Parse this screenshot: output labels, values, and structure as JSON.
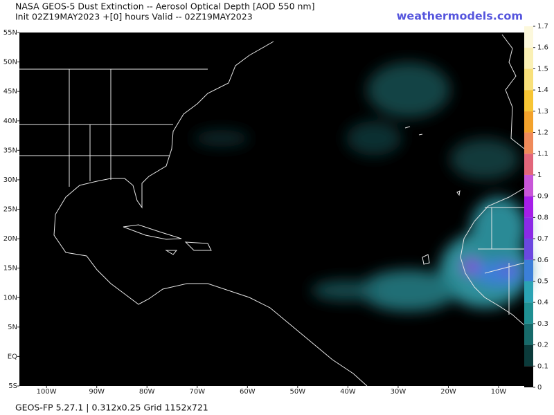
{
  "header": {
    "title": "NASA GEOS-5 Dust Extinction -- Aerosol Optical Depth [AOD 550 nm]",
    "subtitle": "Init 02Z19MAY2023 +[0] hours Valid -- 02Z19MAY2023",
    "site": "weathermodels.com"
  },
  "map": {
    "latitude_labels": [
      {
        "value": 55,
        "label": "55N"
      },
      {
        "value": 50,
        "label": "50N"
      },
      {
        "value": 45,
        "label": "45N"
      },
      {
        "value": 40,
        "label": "40N"
      },
      {
        "value": 35,
        "label": "35N"
      },
      {
        "value": 30,
        "label": "30N"
      },
      {
        "value": 25,
        "label": "25N"
      },
      {
        "value": 20,
        "label": "20N"
      },
      {
        "value": 15,
        "label": "15N"
      },
      {
        "value": 10,
        "label": "10N"
      },
      {
        "value": 5,
        "label": "5N"
      },
      {
        "value": 0,
        "label": "EQ"
      },
      {
        "value": -5,
        "label": "5S"
      }
    ],
    "longitude_labels": [
      {
        "value": -100,
        "label": "100W"
      },
      {
        "value": -90,
        "label": "90W"
      },
      {
        "value": -80,
        "label": "80W"
      },
      {
        "value": -70,
        "label": "70W"
      },
      {
        "value": -60,
        "label": "60W"
      },
      {
        "value": -50,
        "label": "50W"
      },
      {
        "value": -40,
        "label": "40W"
      },
      {
        "value": -30,
        "label": "30W"
      },
      {
        "value": -20,
        "label": "20W"
      },
      {
        "value": -10,
        "label": "10W"
      }
    ]
  },
  "colorbar": {
    "ticks": [
      0,
      0.1,
      0.2,
      0.3,
      0.4,
      0.5,
      0.6,
      0.7,
      0.8,
      0.9,
      1,
      1.1,
      1.2,
      1.3,
      1.4,
      1.5,
      1.6,
      1.7
    ],
    "colors": [
      "#000000",
      "#0b3a3a",
      "#176a6a",
      "#1f8f92",
      "#2aa3b4",
      "#3b7fd8",
      "#6a48e0",
      "#8a2ae6",
      "#a51ee8",
      "#c856d8",
      "#e2667a",
      "#ef8a5a",
      "#f3a22c",
      "#f7c534",
      "#f8e07a",
      "#faf0b4",
      "#fcf8dc"
    ]
  },
  "footer": "GEOS-FP 5.27.1 | 0.312x0.25 Grid 1152x721"
}
